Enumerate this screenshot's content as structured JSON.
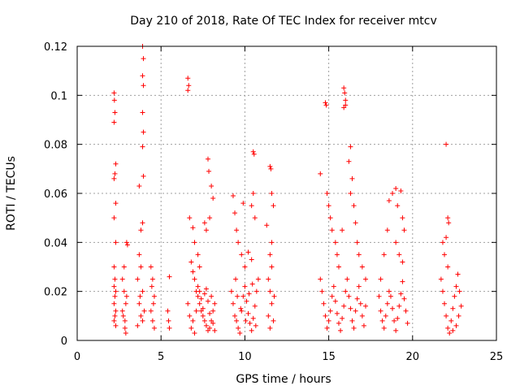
{
  "chart_data": {
    "type": "scatter",
    "title": "Day 210 of 2018, Rate Of TEC Index for receiver mtcv",
    "xlabel": "GPS time / hours",
    "ylabel": "ROTI / TECUs",
    "xlim": [
      0,
      25
    ],
    "ylim": [
      0,
      0.12
    ],
    "x_ticks": [
      0,
      5,
      10,
      15,
      20,
      25
    ],
    "x_tick_labels": [
      "0",
      "5",
      "10",
      "15",
      "20",
      "25"
    ],
    "y_ticks": [
      0,
      0.02,
      0.04,
      0.06,
      0.08,
      0.1,
      0.12
    ],
    "y_tick_labels": [
      "0",
      "0.02",
      "0.04",
      "0.06",
      "0.08",
      "0.1",
      "0.12"
    ],
    "grid": true,
    "marker": "+",
    "color": "#ff0000",
    "series": [
      {
        "name": "ROTI",
        "points": [
          [
            2.2,
            0.101
          ],
          [
            2.22,
            0.098
          ],
          [
            2.25,
            0.093
          ],
          [
            2.2,
            0.089
          ],
          [
            2.25,
            0.068
          ],
          [
            2.3,
            0.072
          ],
          [
            2.2,
            0.066
          ],
          [
            2.3,
            0.056
          ],
          [
            2.2,
            0.05
          ],
          [
            2.3,
            0.04
          ],
          [
            2.2,
            0.03
          ],
          [
            2.25,
            0.025
          ],
          [
            2.3,
            0.02
          ],
          [
            2.2,
            0.015
          ],
          [
            2.25,
            0.01
          ],
          [
            2.3,
            0.006
          ],
          [
            2.2,
            0.008
          ],
          [
            2.3,
            0.012
          ],
          [
            2.25,
            0.018
          ],
          [
            2.2,
            0.022
          ],
          [
            2.7,
            0.025
          ],
          [
            2.8,
            0.02
          ],
          [
            2.9,
            0.015
          ],
          [
            2.75,
            0.01
          ],
          [
            2.85,
            0.005
          ],
          [
            2.9,
            0.003
          ],
          [
            2.8,
            0.03
          ],
          [
            2.95,
            0.04
          ],
          [
            3.0,
            0.039
          ],
          [
            2.85,
            0.008
          ],
          [
            2.7,
            0.012
          ],
          [
            2.95,
            0.018
          ],
          [
            3.7,
            0.063
          ],
          [
            3.9,
            0.12
          ],
          [
            3.95,
            0.115
          ],
          [
            3.9,
            0.108
          ],
          [
            3.95,
            0.104
          ],
          [
            3.9,
            0.093
          ],
          [
            3.95,
            0.085
          ],
          [
            3.9,
            0.079
          ],
          [
            3.95,
            0.067
          ],
          [
            3.9,
            0.048
          ],
          [
            3.8,
            0.045
          ],
          [
            3.7,
            0.035
          ],
          [
            3.8,
            0.03
          ],
          [
            3.6,
            0.025
          ],
          [
            3.9,
            0.02
          ],
          [
            3.7,
            0.015
          ],
          [
            3.8,
            0.01
          ],
          [
            3.6,
            0.006
          ],
          [
            3.9,
            0.008
          ],
          [
            4.0,
            0.012
          ],
          [
            3.75,
            0.018
          ],
          [
            4.4,
            0.03
          ],
          [
            4.5,
            0.025
          ],
          [
            4.6,
            0.018
          ],
          [
            4.4,
            0.012
          ],
          [
            4.5,
            0.008
          ],
          [
            4.6,
            0.005
          ],
          [
            4.45,
            0.022
          ],
          [
            4.55,
            0.015
          ],
          [
            5.4,
            0.012
          ],
          [
            5.45,
            0.008
          ],
          [
            5.5,
            0.005
          ],
          [
            5.5,
            0.026
          ],
          [
            6.6,
            0.107
          ],
          [
            6.65,
            0.104
          ],
          [
            6.6,
            0.102
          ],
          [
            6.7,
            0.05
          ],
          [
            6.9,
            0.046
          ],
          [
            7.0,
            0.04
          ],
          [
            7.2,
            0.035
          ],
          [
            7.3,
            0.03
          ],
          [
            7.6,
            0.048
          ],
          [
            7.8,
            0.074
          ],
          [
            7.85,
            0.069
          ],
          [
            8.0,
            0.063
          ],
          [
            8.1,
            0.058
          ],
          [
            7.9,
            0.05
          ],
          [
            7.7,
            0.045
          ],
          [
            6.8,
            0.032
          ],
          [
            6.9,
            0.028
          ],
          [
            7.0,
            0.025
          ],
          [
            7.1,
            0.02
          ],
          [
            7.2,
            0.018
          ],
          [
            7.3,
            0.015
          ],
          [
            7.4,
            0.012
          ],
          [
            7.5,
            0.01
          ],
          [
            7.6,
            0.008
          ],
          [
            7.7,
            0.006
          ],
          [
            7.8,
            0.004
          ],
          [
            7.9,
            0.005
          ],
          [
            8.0,
            0.008
          ],
          [
            8.1,
            0.012
          ],
          [
            8.2,
            0.015
          ],
          [
            6.6,
            0.015
          ],
          [
            6.7,
            0.01
          ],
          [
            6.8,
            0.005
          ],
          [
            6.9,
            0.008
          ],
          [
            7.0,
            0.003
          ],
          [
            7.1,
            0.012
          ],
          [
            7.2,
            0.022
          ],
          [
            7.3,
            0.02
          ],
          [
            7.4,
            0.017
          ],
          [
            7.5,
            0.013
          ],
          [
            7.6,
            0.019
          ],
          [
            7.7,
            0.021
          ],
          [
            7.8,
            0.016
          ],
          [
            7.9,
            0.011
          ],
          [
            8.0,
            0.018
          ],
          [
            8.1,
            0.007
          ],
          [
            8.2,
            0.004
          ],
          [
            9.3,
            0.059
          ],
          [
            9.4,
            0.052
          ],
          [
            9.5,
            0.045
          ],
          [
            9.6,
            0.04
          ],
          [
            9.8,
            0.035
          ],
          [
            10.0,
            0.03
          ],
          [
            10.2,
            0.036
          ],
          [
            10.4,
            0.033
          ],
          [
            10.5,
            0.077
          ],
          [
            10.55,
            0.076
          ],
          [
            10.5,
            0.06
          ],
          [
            10.6,
            0.05
          ],
          [
            10.4,
            0.055
          ],
          [
            9.9,
            0.056
          ],
          [
            9.2,
            0.02
          ],
          [
            9.3,
            0.015
          ],
          [
            9.4,
            0.01
          ],
          [
            9.5,
            0.008
          ],
          [
            9.6,
            0.005
          ],
          [
            9.7,
            0.003
          ],
          [
            9.8,
            0.012
          ],
          [
            9.9,
            0.018
          ],
          [
            10.0,
            0.022
          ],
          [
            10.1,
            0.016
          ],
          [
            10.2,
            0.011
          ],
          [
            10.3,
            0.007
          ],
          [
            10.4,
            0.004
          ],
          [
            10.5,
            0.009
          ],
          [
            10.6,
            0.014
          ],
          [
            10.7,
            0.02
          ],
          [
            10.8,
            0.025
          ],
          [
            9.45,
            0.025
          ],
          [
            9.55,
            0.018
          ],
          [
            9.75,
            0.013
          ],
          [
            10.05,
            0.008
          ],
          [
            10.25,
            0.019
          ],
          [
            10.45,
            0.023
          ],
          [
            10.65,
            0.006
          ],
          [
            11.3,
            0.047
          ],
          [
            11.5,
            0.071
          ],
          [
            11.55,
            0.07
          ],
          [
            11.6,
            0.06
          ],
          [
            11.7,
            0.055
          ],
          [
            11.6,
            0.04
          ],
          [
            11.5,
            0.035
          ],
          [
            11.6,
            0.03
          ],
          [
            11.4,
            0.025
          ],
          [
            11.5,
            0.02
          ],
          [
            11.6,
            0.015
          ],
          [
            11.4,
            0.01
          ],
          [
            11.5,
            0.005
          ],
          [
            11.7,
            0.008
          ],
          [
            11.75,
            0.018
          ],
          [
            14.5,
            0.068
          ],
          [
            14.8,
            0.097
          ],
          [
            14.85,
            0.096
          ],
          [
            14.9,
            0.06
          ],
          [
            15.0,
            0.055
          ],
          [
            15.1,
            0.05
          ],
          [
            15.2,
            0.045
          ],
          [
            15.4,
            0.04
          ],
          [
            15.5,
            0.035
          ],
          [
            15.6,
            0.03
          ],
          [
            15.8,
            0.045
          ],
          [
            15.9,
            0.103
          ],
          [
            15.95,
            0.101
          ],
          [
            16.0,
            0.098
          ],
          [
            16.0,
            0.096
          ],
          [
            15.9,
            0.095
          ],
          [
            16.2,
            0.073
          ],
          [
            16.3,
            0.079
          ],
          [
            16.4,
            0.066
          ],
          [
            16.3,
            0.06
          ],
          [
            16.5,
            0.055
          ],
          [
            16.6,
            0.048
          ],
          [
            16.7,
            0.04
          ],
          [
            16.8,
            0.035
          ],
          [
            17.0,
            0.03
          ],
          [
            17.2,
            0.025
          ],
          [
            14.5,
            0.025
          ],
          [
            14.6,
            0.02
          ],
          [
            14.7,
            0.015
          ],
          [
            14.8,
            0.01
          ],
          [
            14.9,
            0.005
          ],
          [
            15.0,
            0.008
          ],
          [
            15.1,
            0.012
          ],
          [
            15.2,
            0.018
          ],
          [
            15.3,
            0.022
          ],
          [
            15.4,
            0.016
          ],
          [
            15.5,
            0.011
          ],
          [
            15.6,
            0.007
          ],
          [
            15.7,
            0.004
          ],
          [
            15.8,
            0.009
          ],
          [
            15.9,
            0.014
          ],
          [
            16.0,
            0.02
          ],
          [
            16.1,
            0.025
          ],
          [
            16.2,
            0.018
          ],
          [
            16.3,
            0.013
          ],
          [
            16.4,
            0.008
          ],
          [
            16.5,
            0.005
          ],
          [
            16.6,
            0.012
          ],
          [
            16.7,
            0.017
          ],
          [
            16.8,
            0.022
          ],
          [
            16.9,
            0.015
          ],
          [
            17.0,
            0.01
          ],
          [
            17.1,
            0.006
          ],
          [
            17.2,
            0.014
          ],
          [
            18.1,
            0.025
          ],
          [
            18.3,
            0.035
          ],
          [
            18.5,
            0.045
          ],
          [
            18.6,
            0.057
          ],
          [
            18.8,
            0.06
          ],
          [
            19.0,
            0.062
          ],
          [
            19.1,
            0.055
          ],
          [
            19.3,
            0.061
          ],
          [
            19.4,
            0.05
          ],
          [
            19.5,
            0.045
          ],
          [
            19.0,
            0.04
          ],
          [
            19.2,
            0.035
          ],
          [
            19.4,
            0.032
          ],
          [
            18.0,
            0.018
          ],
          [
            18.1,
            0.012
          ],
          [
            18.2,
            0.008
          ],
          [
            18.3,
            0.005
          ],
          [
            18.4,
            0.01
          ],
          [
            18.5,
            0.015
          ],
          [
            18.6,
            0.02
          ],
          [
            18.7,
            0.018
          ],
          [
            18.8,
            0.013
          ],
          [
            18.9,
            0.008
          ],
          [
            19.0,
            0.004
          ],
          [
            19.1,
            0.009
          ],
          [
            19.2,
            0.014
          ],
          [
            19.3,
            0.019
          ],
          [
            19.4,
            0.024
          ],
          [
            19.5,
            0.017
          ],
          [
            19.6,
            0.012
          ],
          [
            19.7,
            0.007
          ],
          [
            21.8,
            0.04
          ],
          [
            21.9,
            0.035
          ],
          [
            22.0,
            0.08
          ],
          [
            22.1,
            0.05
          ],
          [
            22.15,
            0.048
          ],
          [
            22.0,
            0.042
          ],
          [
            22.1,
            0.03
          ],
          [
            21.7,
            0.025
          ],
          [
            21.8,
            0.02
          ],
          [
            21.9,
            0.015
          ],
          [
            22.0,
            0.01
          ],
          [
            22.1,
            0.005
          ],
          [
            22.2,
            0.003
          ],
          [
            22.3,
            0.008
          ],
          [
            22.4,
            0.013
          ],
          [
            22.5,
            0.018
          ],
          [
            22.6,
            0.022
          ],
          [
            22.7,
            0.027
          ],
          [
            22.8,
            0.02
          ],
          [
            22.9,
            0.014
          ],
          [
            22.75,
            0.01
          ],
          [
            22.6,
            0.006
          ],
          [
            22.4,
            0.004
          ]
        ]
      }
    ]
  }
}
